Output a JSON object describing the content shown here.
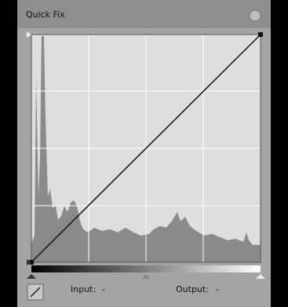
{
  "header": {
    "title": "Quick Fix"
  },
  "footer": {
    "input_label": "Input:",
    "input_value": "-",
    "output_label": "Output:",
    "output_value": "-"
  }
}
